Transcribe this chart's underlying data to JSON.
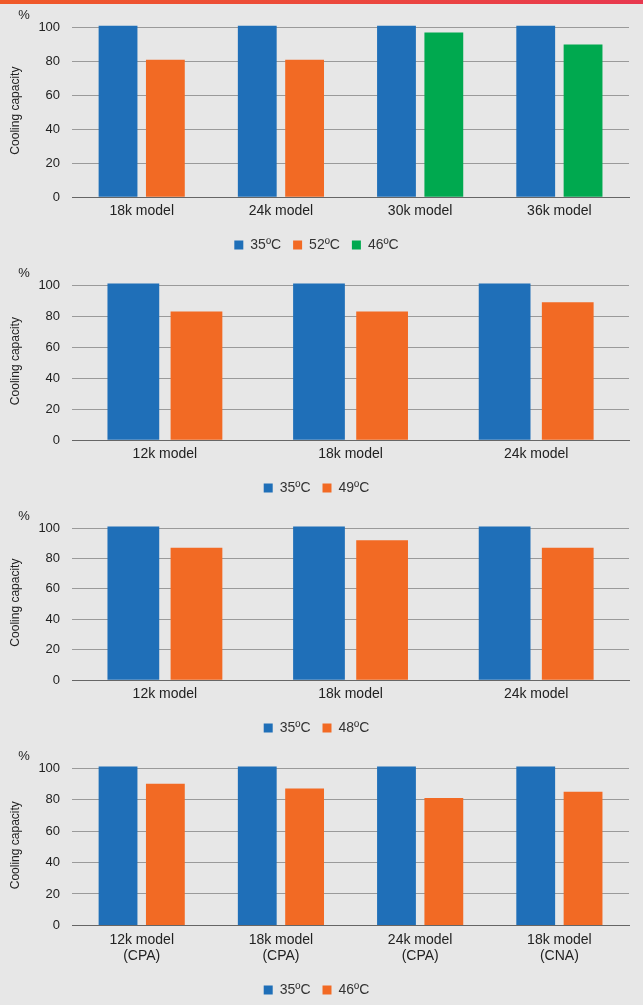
{
  "chart_data": [
    {
      "type": "bar",
      "ylabel": "Cooling capacity",
      "annotations": [
        "%"
      ],
      "categories": [
        "18k model",
        "24k model",
        "30k model",
        "36k model"
      ],
      "series": [
        {
          "name": "35ºC",
          "color": "#1f6fb8",
          "values": [
            101,
            101,
            101,
            101
          ]
        },
        {
          "name": "52ºC",
          "color": "#f26a24",
          "values": [
            81,
            81,
            null,
            null
          ]
        },
        {
          "name": "46ºC",
          "color": "#00a94f",
          "values": [
            null,
            null,
            97,
            90
          ]
        }
      ],
      "ylim": [
        0,
        102
      ],
      "yticks": [
        0,
        20,
        40,
        60,
        80,
        100
      ],
      "grid": "y",
      "legend": "bottom"
    },
    {
      "type": "bar",
      "ylabel": "Cooling capacity",
      "annotations": [
        "%"
      ],
      "categories": [
        "12k model",
        "18k model",
        "24k model"
      ],
      "series": [
        {
          "name": "35ºC",
          "color": "#1f6fb8",
          "values": [
            101,
            101,
            101
          ]
        },
        {
          "name": "49ºC",
          "color": "#f26a24",
          "values": [
            83,
            83,
            89
          ]
        }
      ],
      "ylim": [
        0,
        102
      ],
      "yticks": [
        0,
        20,
        40,
        60,
        80,
        100
      ],
      "grid": "y",
      "legend": "bottom"
    },
    {
      "type": "bar",
      "ylabel": "Cooling capacity",
      "annotations": [
        "%"
      ],
      "categories": [
        "12k model",
        "18k model",
        "24k model"
      ],
      "series": [
        {
          "name": "35ºC",
          "color": "#1f6fb8",
          "values": [
            101,
            101,
            101
          ]
        },
        {
          "name": "48ºC",
          "color": "#f26a24",
          "values": [
            87,
            92,
            87
          ]
        }
      ],
      "ylim": [
        0,
        102
      ],
      "yticks": [
        0,
        20,
        40,
        60,
        80,
        100
      ],
      "grid": "y",
      "legend": "bottom"
    },
    {
      "type": "bar",
      "ylabel": "Cooling capacity",
      "annotations": [
        "%"
      ],
      "categories": [
        "12k model\n(CPA)",
        "18k model\n(CPA)",
        "24k model\n(CPA)",
        "18k model\n(CNA)"
      ],
      "series": [
        {
          "name": "35ºC",
          "color": "#1f6fb8",
          "values": [
            101,
            101,
            101,
            101
          ]
        },
        {
          "name": "46ºC",
          "color": "#f26a24",
          "values": [
            90,
            87,
            81,
            85
          ]
        }
      ],
      "ylim": [
        0,
        102
      ],
      "yticks": [
        0,
        20,
        40,
        60,
        80,
        100
      ],
      "grid": "y",
      "legend": "bottom"
    }
  ]
}
